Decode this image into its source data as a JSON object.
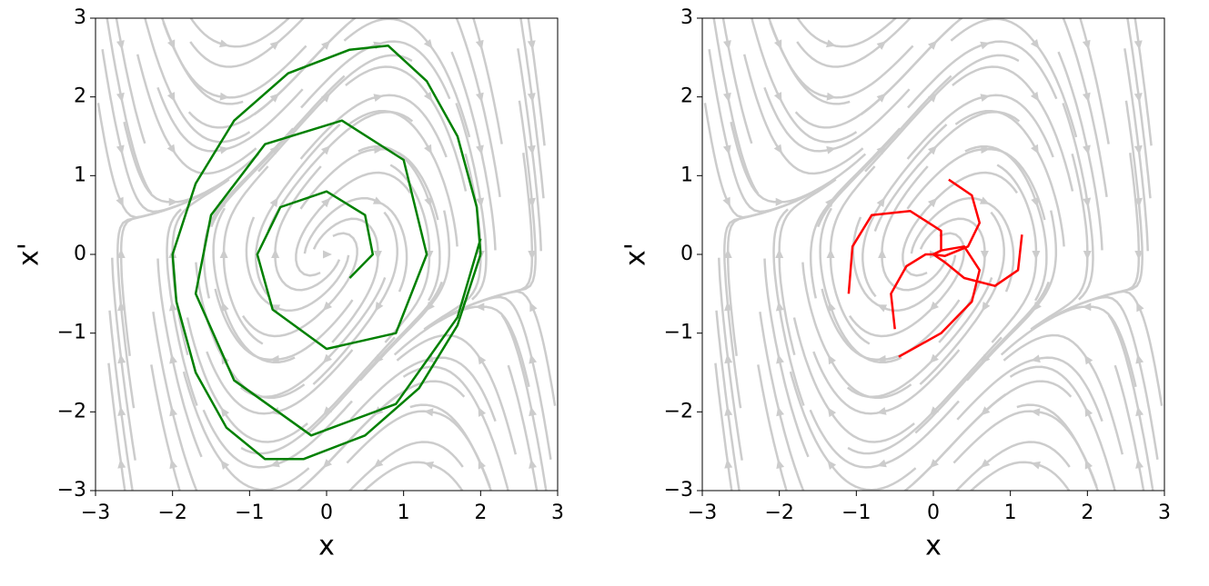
{
  "chart_data": [
    {
      "type": "line",
      "xlabel": "x",
      "ylabel": "x'",
      "xlim": [
        -3,
        3
      ],
      "ylim": [
        -3,
        3
      ],
      "xticks": [
        {
          "value": -3,
          "label": "−3"
        },
        {
          "value": -2,
          "label": "−2"
        },
        {
          "value": -1,
          "label": "−1"
        },
        0,
        1,
        2,
        3
      ],
      "yticks": [
        {
          "value": -3,
          "label": "−3"
        },
        {
          "value": -2,
          "label": "−2"
        },
        {
          "value": -1,
          "label": "−1"
        },
        0,
        1,
        2,
        3
      ],
      "series": [
        {
          "color": "green",
          "x": [
            2.0,
            1.7,
            1.2,
            0.5,
            -0.3,
            -0.8,
            -1.3,
            -1.7,
            -1.95,
            -2.0,
            -1.7,
            -1.2,
            -0.5,
            0.3,
            0.8,
            1.3,
            1.7,
            1.95,
            2.0
          ],
          "values": [
            0.0,
            -0.9,
            -1.7,
            -2.3,
            -2.6,
            -2.6,
            -2.2,
            -1.5,
            -0.6,
            0.0,
            0.9,
            1.7,
            2.3,
            2.6,
            2.65,
            2.2,
            1.5,
            0.6,
            0.0
          ]
        },
        {
          "color": "green",
          "x": [
            0.3,
            0.6,
            0.5,
            0.0,
            -0.6,
            -0.9,
            -0.7,
            0.0,
            0.9,
            1.3,
            1.0,
            0.2,
            -0.8,
            -1.5,
            -1.7,
            -1.2,
            -0.2,
            0.9,
            1.7,
            2.0
          ],
          "values": [
            -0.3,
            0.0,
            0.5,
            0.8,
            0.6,
            0.0,
            -0.7,
            -1.2,
            -1.0,
            0.0,
            1.2,
            1.7,
            1.4,
            0.5,
            -0.5,
            -1.6,
            -2.3,
            -1.9,
            -0.8,
            0.2
          ]
        }
      ]
    },
    {
      "type": "line",
      "xlabel": "x",
      "ylabel": "x'",
      "xlim": [
        -3,
        3
      ],
      "ylim": [
        -3,
        3
      ],
      "xticks": [
        {
          "value": -3,
          "label": "−3"
        },
        {
          "value": -2,
          "label": "−2"
        },
        {
          "value": -1,
          "label": "−1"
        },
        0,
        1,
        2,
        3
      ],
      "yticks": [
        {
          "value": -3,
          "label": "−3"
        },
        {
          "value": -2,
          "label": "−2"
        },
        {
          "value": -1,
          "label": "−1"
        },
        0,
        1,
        2,
        3
      ],
      "series": [
        {
          "color": "red",
          "x": [
            -1.1,
            -1.05,
            -0.8,
            -0.3,
            0.1,
            0.1,
            0.0
          ],
          "values": [
            -0.5,
            0.1,
            0.5,
            0.55,
            0.3,
            0.05,
            0.0
          ]
        },
        {
          "color": "red",
          "x": [
            1.15,
            1.1,
            0.8,
            0.4,
            0.15,
            0.0
          ],
          "values": [
            0.25,
            -0.2,
            -0.4,
            -0.3,
            -0.1,
            0.0
          ]
        },
        {
          "color": "red",
          "x": [
            -0.45,
            0.1,
            0.5,
            0.6,
            0.4,
            0.1,
            0.0
          ],
          "values": [
            -1.3,
            -1.0,
            -0.6,
            -0.2,
            0.1,
            0.05,
            0.0
          ]
        },
        {
          "color": "red",
          "x": [
            0.2,
            0.5,
            0.6,
            0.45,
            0.15,
            0.0
          ],
          "values": [
            0.95,
            0.75,
            0.4,
            0.1,
            -0.02,
            0.0
          ]
        },
        {
          "color": "red",
          "x": [
            -0.5,
            -0.55,
            -0.35,
            -0.1,
            0.0
          ],
          "values": [
            -0.95,
            -0.5,
            -0.15,
            0.0,
            0.0
          ]
        }
      ]
    }
  ]
}
